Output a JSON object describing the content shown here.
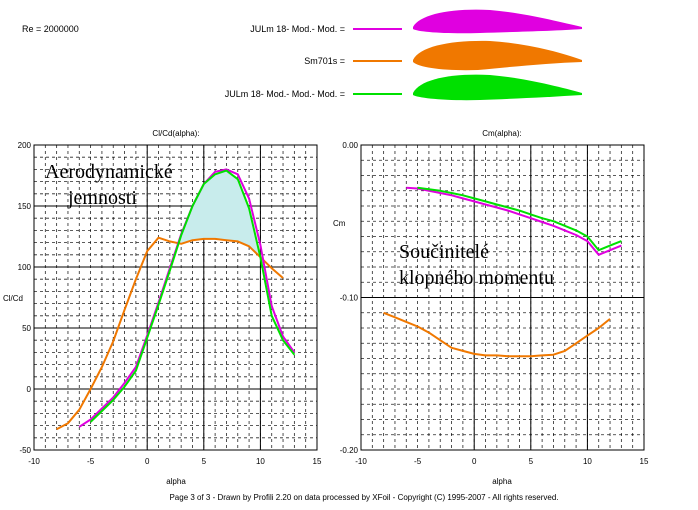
{
  "header": {
    "reynolds": "Re = 2000000",
    "legend": [
      {
        "label": "JULm 18- Mod.- Mod. =",
        "color": "#e000e0"
      },
      {
        "label": "Sm701s =",
        "color": "#f07800"
      },
      {
        "label": "JULm 18- Mod.- Mod.- Mod. =",
        "color": "#00e000"
      }
    ]
  },
  "footer": "Page 3 of 3   -   Drawn by Profili 2.20 on data processed by  XFoil - Copyright (C) 1995-2007 - All rights reserved.",
  "colors": {
    "magenta": "#e000e0",
    "orange": "#f07800",
    "green": "#00e000",
    "fill": "#c8ecec"
  },
  "chart_data": [
    {
      "type": "line",
      "title": "Cl/Cd(alpha):",
      "xlabel": "alpha",
      "ylabel": "Cl/Cd",
      "xlim": [
        -10,
        15
      ],
      "ylim": [
        -50,
        200
      ],
      "x_ticks": [
        "-10",
        "-5",
        "0",
        "5",
        "10",
        "15"
      ],
      "y_ticks": [
        "200",
        "150",
        "100",
        "50",
        "0",
        "-50"
      ],
      "grid": true,
      "annotation": "Aerodynamické\njemnosti",
      "series": [
        {
          "name": "JULm 18- Mod.- Mod.",
          "color": "#e000e0",
          "x": [
            -6,
            -5,
            -4,
            -3,
            -2,
            -1,
            0,
            1,
            2,
            3,
            4,
            5,
            6,
            7,
            8,
            9,
            10,
            11,
            12,
            13
          ],
          "y": [
            -31,
            -25,
            -16,
            -7,
            5,
            18,
            44,
            71,
            99,
            127,
            150,
            168,
            178,
            180,
            176,
            156,
            118,
            68,
            43,
            30
          ]
        },
        {
          "name": "Sm701s",
          "color": "#f07800",
          "x": [
            -8,
            -7,
            -6,
            -5,
            -4,
            -3,
            -2,
            -1,
            0,
            1,
            2,
            3,
            4,
            5,
            6,
            7,
            8,
            9,
            10,
            11,
            12
          ],
          "y": [
            -33,
            -28,
            -17,
            0,
            18,
            39,
            65,
            90,
            113,
            124,
            121,
            119,
            122,
            123,
            123,
            122,
            121,
            117,
            108,
            99,
            91
          ]
        },
        {
          "name": "JULm 18- Mod.- Mod.- Mod.",
          "color": "#00e000",
          "x": [
            -5,
            -4,
            -3,
            -2,
            -1,
            0,
            1,
            2,
            3,
            4,
            5,
            6,
            7,
            8,
            9,
            10,
            11,
            12,
            13
          ],
          "y": [
            -27,
            -18,
            -9,
            2,
            15,
            42,
            69,
            97,
            126,
            150,
            168,
            176,
            179,
            172,
            148,
            108,
            60,
            40,
            28
          ]
        }
      ]
    },
    {
      "type": "line",
      "title": "Cm(alpha):",
      "xlabel": "alpha",
      "ylabel": "Cm",
      "xlim": [
        -10,
        15
      ],
      "ylim": [
        -0.2,
        0.0
      ],
      "x_ticks": [
        "-10",
        "-5",
        "0",
        "5",
        "10",
        "15"
      ],
      "y_ticks": [
        "0.00",
        "-0.10",
        "-0.20"
      ],
      "grid": true,
      "annotation": "Součinitelé\nklopného momentu",
      "series": [
        {
          "name": "JULm 18- Mod.- Mod.",
          "color": "#e000e0",
          "x": [
            -6,
            -5,
            -4,
            -3,
            -2,
            -1,
            0,
            1,
            2,
            3,
            4,
            5,
            6,
            7,
            8,
            9,
            10,
            11,
            12,
            13
          ],
          "y": [
            -0.028,
            -0.0285,
            -0.03,
            -0.0315,
            -0.033,
            -0.035,
            -0.037,
            -0.039,
            -0.041,
            -0.043,
            -0.0455,
            -0.048,
            -0.0505,
            -0.053,
            -0.056,
            -0.059,
            -0.063,
            -0.072,
            -0.069,
            -0.066
          ]
        },
        {
          "name": "Sm701s",
          "color": "#f07800",
          "x": [
            -8,
            -7,
            -6,
            -5,
            -4,
            -3,
            -2,
            -1,
            0,
            1,
            2,
            3,
            4,
            5,
            6,
            7,
            8,
            9,
            10,
            11,
            12
          ],
          "y": [
            -0.11,
            -0.113,
            -0.116,
            -0.119,
            -0.123,
            -0.128,
            -0.133,
            -0.135,
            -0.137,
            -0.138,
            -0.138,
            -0.1385,
            -0.1385,
            -0.1385,
            -0.138,
            -0.1375,
            -0.135,
            -0.13,
            -0.125,
            -0.12,
            -0.114
          ]
        },
        {
          "name": "JULm 18- Mod.- Mod.- Mod.",
          "color": "#00e000",
          "x": [
            -5,
            -4,
            -3,
            -2,
            -1,
            0,
            1,
            2,
            3,
            4,
            5,
            6,
            7,
            8,
            9,
            10,
            11,
            12,
            13
          ],
          "y": [
            -0.028,
            -0.029,
            -0.03,
            -0.0315,
            -0.033,
            -0.035,
            -0.037,
            -0.039,
            -0.041,
            -0.043,
            -0.0455,
            -0.048,
            -0.05,
            -0.053,
            -0.056,
            -0.06,
            -0.069,
            -0.066,
            -0.063
          ]
        }
      ]
    }
  ]
}
